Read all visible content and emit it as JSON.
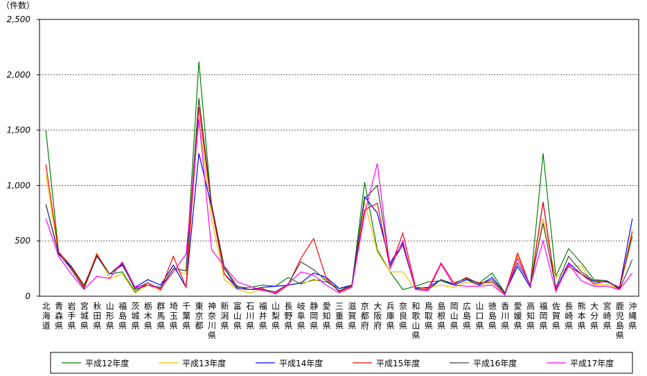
{
  "chart_data": {
    "type": "line",
    "y_label": "（件数）",
    "categories": [
      "北海道",
      "青森県",
      "岩手県",
      "宮城県",
      "秋田県",
      "山形県",
      "福島県",
      "茨城県",
      "栃木県",
      "群馬県",
      "埼玉県",
      "千葉県",
      "東京都",
      "神奈川県",
      "新潟県",
      "富山県",
      "石川県",
      "福井県",
      "山梨県",
      "長野県",
      "岐阜県",
      "静岡県",
      "愛知県",
      "三重県",
      "滋賀県",
      "京都府",
      "大阪府",
      "兵庫県",
      "奈良県",
      "和歌山県",
      "鳥取県",
      "島根県",
      "岡山県",
      "広島県",
      "山口県",
      "徳島県",
      "香川県",
      "愛媛県",
      "高知県",
      "福岡県",
      "佐賀県",
      "長崎県",
      "熊本県",
      "大分県",
      "宮崎県",
      "鹿児島県",
      "沖縄県"
    ],
    "series": [
      {
        "name": "平成12年度",
        "color": "#008000",
        "values": [
          1500,
          400,
          270,
          100,
          370,
          200,
          220,
          40,
          120,
          60,
          250,
          230,
          2120,
          800,
          250,
          80,
          80,
          100,
          90,
          170,
          110,
          150,
          130,
          70,
          90,
          1030,
          420,
          220,
          60,
          90,
          130,
          140,
          100,
          150,
          120,
          210,
          30,
          340,
          100,
          1290,
          180,
          430,
          300,
          150,
          140,
          70,
          540
        ]
      },
      {
        "name": "平成13年度",
        "color": "#f0c000",
        "values": [
          1100,
          380,
          250,
          80,
          390,
          160,
          200,
          30,
          100,
          50,
          240,
          200,
          1600,
          700,
          150,
          60,
          30,
          60,
          40,
          100,
          120,
          140,
          160,
          40,
          90,
          850,
          400,
          220,
          220,
          60,
          80,
          100,
          80,
          130,
          100,
          130,
          20,
          370,
          80,
          700,
          160,
          280,
          270,
          100,
          110,
          60,
          600
        ]
      },
      {
        "name": "平成14年度",
        "color": "#0000ff",
        "values": [
          830,
          380,
          260,
          90,
          360,
          200,
          280,
          80,
          150,
          100,
          280,
          80,
          1290,
          800,
          200,
          70,
          60,
          80,
          90,
          100,
          120,
          210,
          170,
          70,
          100,
          900,
          750,
          300,
          480,
          70,
          80,
          150,
          100,
          150,
          100,
          170,
          30,
          270,
          80,
          850,
          60,
          300,
          200,
          130,
          130,
          80,
          700
        ]
      },
      {
        "name": "平成15年度",
        "color": "#ff0000",
        "values": [
          1190,
          400,
          270,
          90,
          380,
          200,
          300,
          70,
          120,
          60,
          360,
          80,
          1710,
          800,
          200,
          90,
          60,
          70,
          20,
          100,
          340,
          520,
          160,
          40,
          90,
          780,
          840,
          250,
          570,
          80,
          70,
          300,
          120,
          160,
          120,
          130,
          20,
          390,
          90,
          850,
          60,
          270,
          200,
          110,
          140,
          70,
          580
        ]
      },
      {
        "name": "平成16年度",
        "color": "#404040",
        "values": [
          830,
          390,
          240,
          70,
          360,
          200,
          290,
          60,
          100,
          80,
          250,
          230,
          1790,
          830,
          260,
          90,
          60,
          60,
          40,
          110,
          310,
          240,
          140,
          50,
          100,
          880,
          1000,
          280,
          460,
          60,
          60,
          150,
          110,
          170,
          110,
          150,
          30,
          300,
          100,
          660,
          80,
          360,
          220,
          140,
          140,
          60,
          330
        ]
      },
      {
        "name": "平成17年度",
        "color": "#ff00ff",
        "values": [
          700,
          360,
          200,
          60,
          180,
          160,
          310,
          80,
          100,
          70,
          220,
          380,
          1600,
          420,
          270,
          130,
          90,
          50,
          30,
          110,
          220,
          190,
          100,
          30,
          80,
          740,
          1200,
          250,
          500,
          60,
          50,
          290,
          100,
          90,
          90,
          100,
          10,
          340,
          100,
          500,
          40,
          290,
          140,
          90,
          90,
          60,
          210
        ]
      }
    ],
    "ylim": [
      0,
      2500
    ],
    "yticks": [
      0,
      500,
      {
        "value": 1000,
        "label": "1,000"
      },
      {
        "value": 1500,
        "label": "1,500"
      },
      {
        "value": 2000,
        "label": "2,000"
      },
      {
        "value": 2500,
        "label": "2,500"
      }
    ],
    "grid": true
  }
}
